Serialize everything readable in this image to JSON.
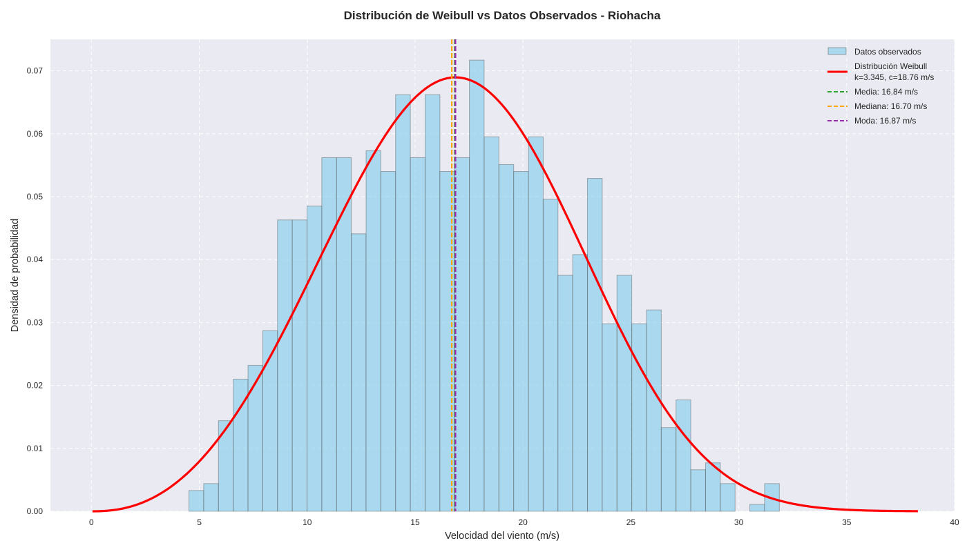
{
  "chart_data": {
    "type": "histogram",
    "title": "Distribución de Weibull vs Datos Observados - Riohacha",
    "xlabel": "Velocidad del viento (m/s)",
    "ylabel": "Densidad de probabilidad",
    "xlim": [
      -1.9,
      40
    ],
    "ylim": [
      0,
      0.075
    ],
    "xticks": [
      0,
      5,
      10,
      15,
      20,
      25,
      30,
      35,
      40
    ],
    "yticks": [
      0.0,
      0.01,
      0.02,
      0.03,
      0.04,
      0.05,
      0.06,
      0.07
    ],
    "ytick_labels": [
      "0.00",
      "0.01",
      "0.02",
      "0.03",
      "0.04",
      "0.05",
      "0.06",
      "0.07"
    ],
    "grid": true,
    "legend_position": "top-right",
    "histogram": {
      "name": "Datos observados",
      "bin_start": 4.52,
      "bin_width": 0.684,
      "densities": [
        0.0033,
        0.0044,
        0.0144,
        0.021,
        0.0232,
        0.0287,
        0.0463,
        0.0463,
        0.0485,
        0.0562,
        0.0562,
        0.0441,
        0.0573,
        0.054,
        0.0662,
        0.0562,
        0.0662,
        0.054,
        0.0562,
        0.0717,
        0.0595,
        0.0551,
        0.054,
        0.0595,
        0.0496,
        0.0375,
        0.0408,
        0.0529,
        0.0298,
        0.0375,
        0.0298,
        0.032,
        0.0133,
        0.0177,
        0.0066,
        0.0077,
        0.0044,
        0.0,
        0.0011,
        0.0044
      ],
      "color": "#87CEEB",
      "edge_color": "#555555"
    },
    "weibull": {
      "name": "Distribución Weibull",
      "name_line2": "k=3.345, c=18.76 m/s",
      "k": 3.345,
      "c": 18.76,
      "x_range": [
        0.05,
        38.3
      ],
      "color": "#FF0000"
    },
    "vlines": [
      {
        "name": "Media: 16.84 m/s",
        "x": 16.84,
        "color": "#2CA02C"
      },
      {
        "name": "Mediana: 16.70 m/s",
        "x": 16.7,
        "color": "#FFA500"
      },
      {
        "name": "Moda: 16.87 m/s",
        "x": 16.87,
        "color": "#9C27B0"
      }
    ],
    "colors": {
      "axes_bg": "#EAEAF2",
      "grid": "#FFFFFF"
    }
  }
}
